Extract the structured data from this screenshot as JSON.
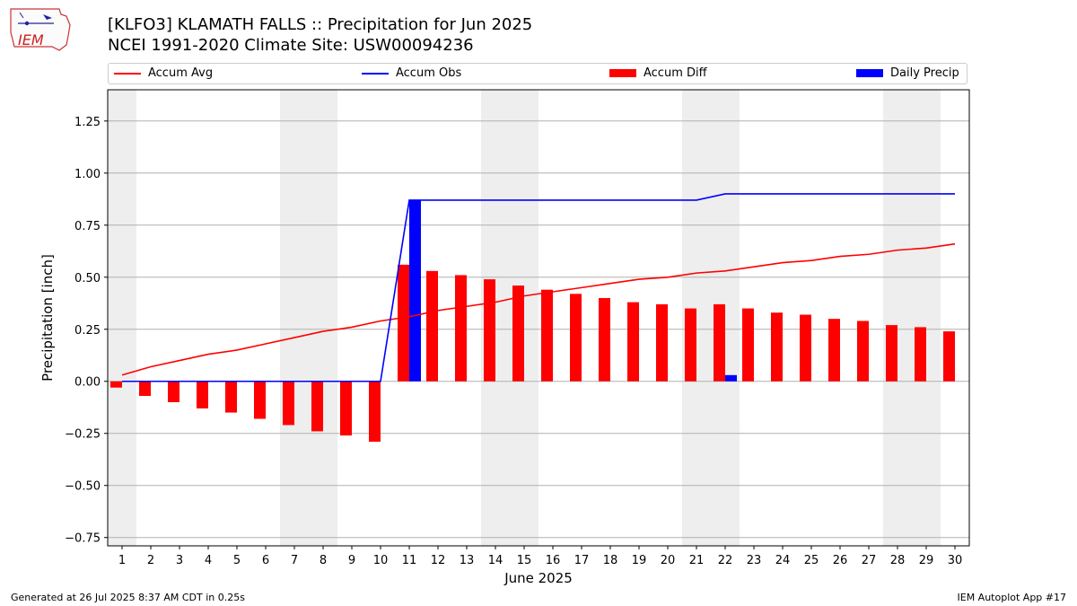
{
  "title_line1": "[KLFO3] KLAMATH FALLS :: Precipitation for Jun 2025",
  "title_line2": "NCEI 1991-2020 Climate Site: USW00094236",
  "logo_text": "IEM",
  "footer_left": "Generated at 26 Jul 2025 8:37 AM CDT in 0.25s",
  "footer_right": "IEM Autoplot App #17",
  "colors": {
    "accum_avg": "#ff0000",
    "accum_obs": "#0000ff",
    "accum_diff": "#ff0000",
    "daily_precip": "#0000ff",
    "weekend_shade": "#eeeeee",
    "grid": "#b0b0b0"
  },
  "chart_data": {
    "type": "bar",
    "xlabel": "June 2025",
    "ylabel": "Precipitation [inch]",
    "ylim": [
      -0.79,
      1.4
    ],
    "yticks": [
      -0.75,
      -0.5,
      -0.25,
      0.0,
      0.25,
      0.5,
      0.75,
      1.0,
      1.25
    ],
    "ytick_labels": [
      "−0.75",
      "−0.50",
      "−0.25",
      "0.00",
      "0.25",
      "0.50",
      "0.75",
      "1.00",
      "1.25"
    ],
    "grid": "horizontal",
    "legend_placement": "top",
    "weekend_shaded_days": [
      1,
      7,
      8,
      14,
      15,
      21,
      22,
      28,
      29
    ],
    "x": [
      1,
      2,
      3,
      4,
      5,
      6,
      7,
      8,
      9,
      10,
      11,
      12,
      13,
      14,
      15,
      16,
      17,
      18,
      19,
      20,
      21,
      22,
      23,
      24,
      25,
      26,
      27,
      28,
      29,
      30
    ],
    "series": [
      {
        "name": "Accum Avg",
        "kind": "line",
        "values": [
          0.03,
          0.07,
          0.1,
          0.13,
          0.15,
          0.18,
          0.21,
          0.24,
          0.26,
          0.29,
          0.31,
          0.34,
          0.36,
          0.38,
          0.41,
          0.43,
          0.45,
          0.47,
          0.49,
          0.5,
          0.52,
          0.53,
          0.55,
          0.57,
          0.58,
          0.6,
          0.61,
          0.63,
          0.64,
          0.66
        ]
      },
      {
        "name": "Accum Obs",
        "kind": "line",
        "values": [
          0,
          0,
          0,
          0,
          0,
          0,
          0,
          0,
          0,
          0,
          0.87,
          0.87,
          0.87,
          0.87,
          0.87,
          0.87,
          0.87,
          0.87,
          0.87,
          0.87,
          0.87,
          0.9,
          0.9,
          0.9,
          0.9,
          0.9,
          0.9,
          0.9,
          0.9,
          0.9
        ]
      },
      {
        "name": "Accum Diff",
        "kind": "bar",
        "values": [
          -0.03,
          -0.07,
          -0.1,
          -0.13,
          -0.15,
          -0.18,
          -0.21,
          -0.24,
          -0.26,
          -0.29,
          0.56,
          0.53,
          0.51,
          0.49,
          0.46,
          0.44,
          0.42,
          0.4,
          0.38,
          0.37,
          0.35,
          0.37,
          0.35,
          0.33,
          0.32,
          0.3,
          0.29,
          0.27,
          0.26,
          0.24
        ]
      },
      {
        "name": "Daily Precip",
        "kind": "bar",
        "values": [
          0,
          0,
          0,
          0,
          0,
          0,
          0,
          0,
          0,
          0,
          0.87,
          0,
          0,
          0,
          0,
          0,
          0,
          0,
          0,
          0,
          0,
          0.03,
          0,
          0,
          0,
          0,
          0,
          0,
          0,
          0
        ]
      }
    ]
  }
}
